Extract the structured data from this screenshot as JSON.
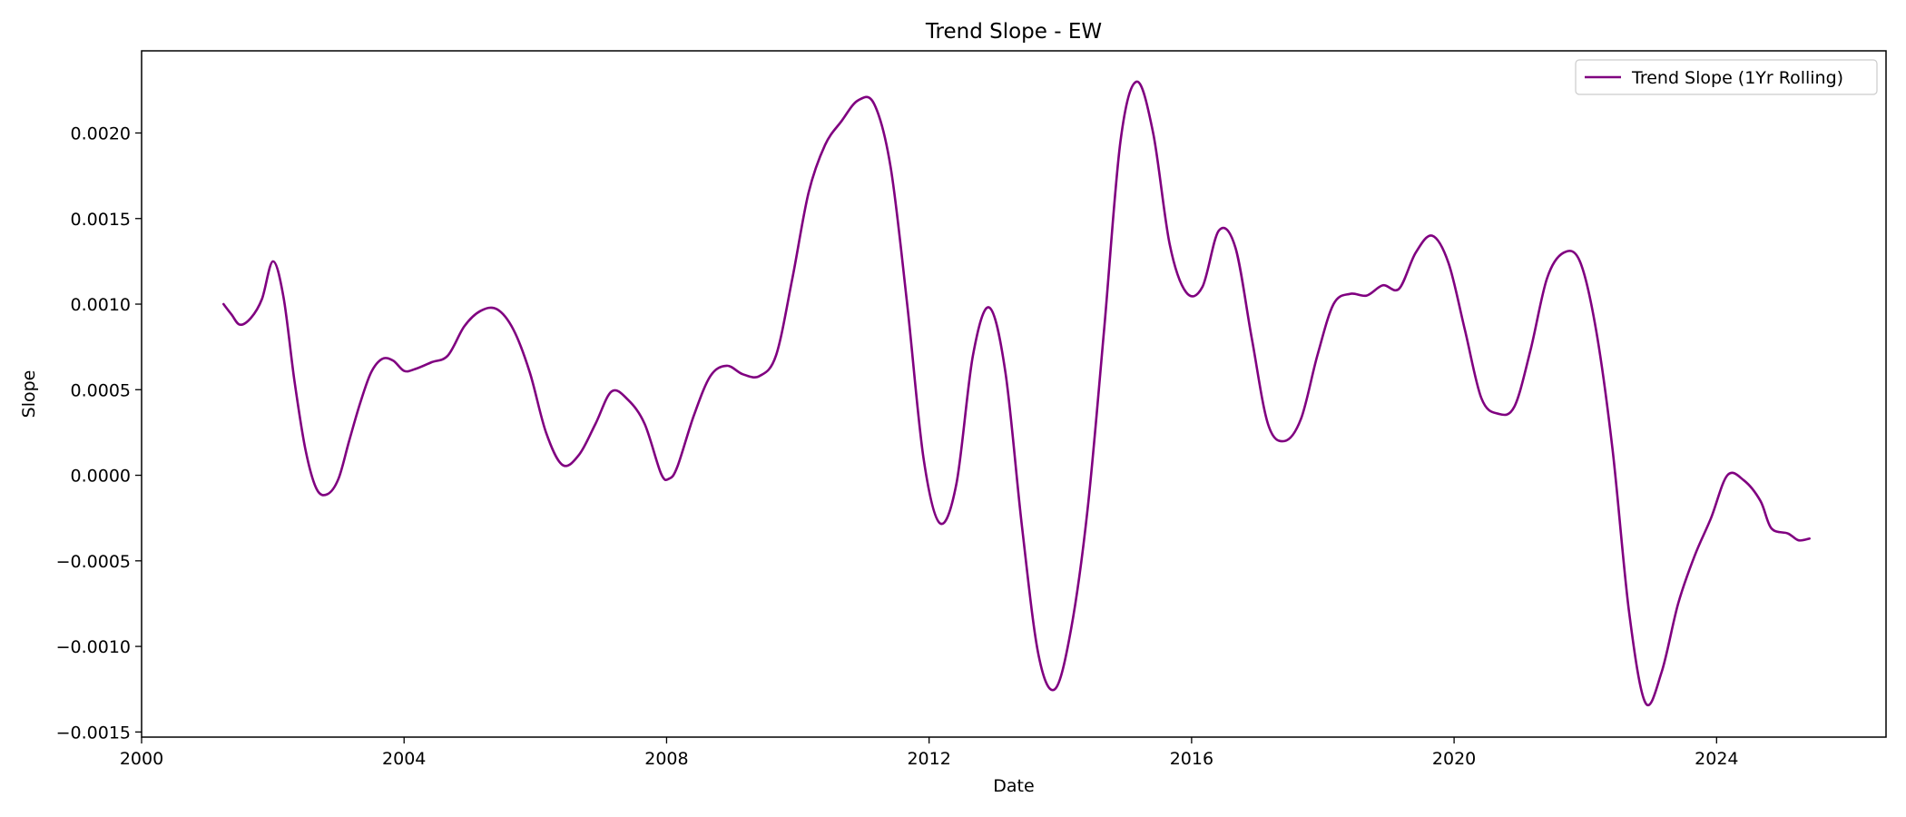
{
  "chart_data": {
    "type": "line",
    "title": "Trend Slope - EW",
    "xlabel": "Date",
    "ylabel": "Slope",
    "x_axis_type": "date",
    "xlim": [
      "2000-01-01",
      "2026-08-01"
    ],
    "ylim": [
      -0.00153,
      0.00248
    ],
    "x_ticks": [
      {
        "date": "2000-01-01",
        "label": "2000"
      },
      {
        "date": "2004-01-01",
        "label": "2004"
      },
      {
        "date": "2008-01-01",
        "label": "2008"
      },
      {
        "date": "2012-01-01",
        "label": "2012"
      },
      {
        "date": "2016-01-01",
        "label": "2016"
      },
      {
        "date": "2020-01-01",
        "label": "2020"
      },
      {
        "date": "2024-01-01",
        "label": "2024"
      }
    ],
    "y_ticks": [
      {
        "value": -0.0015,
        "label": "−0.0015"
      },
      {
        "value": -0.001,
        "label": "−0.0010"
      },
      {
        "value": -0.0005,
        "label": "−0.0005"
      },
      {
        "value": 0.0,
        "label": "0.0000"
      },
      {
        "value": 0.0005,
        "label": "0.0005"
      },
      {
        "value": 0.001,
        "label": "0.0010"
      },
      {
        "value": 0.0015,
        "label": "0.0015"
      },
      {
        "value": 0.002,
        "label": "0.0020"
      }
    ],
    "grid": false,
    "legend_position": "top-right",
    "series": [
      {
        "name": "Trend Slope (1Yr Rolling)",
        "color": "#800080",
        "points": [
          [
            "2001-04-01",
            0.001
          ],
          [
            "2001-05-15",
            0.00094
          ],
          [
            "2001-07-01",
            0.00088
          ],
          [
            "2001-09-01",
            0.00092
          ],
          [
            "2001-11-01",
            0.00103
          ],
          [
            "2002-01-01",
            0.00125
          ],
          [
            "2002-03-01",
            0.00104
          ],
          [
            "2002-05-01",
            0.00055
          ],
          [
            "2002-07-01",
            0.00015
          ],
          [
            "2002-09-01",
            -8e-05
          ],
          [
            "2002-11-01",
            -0.00011
          ],
          [
            "2003-01-01",
            -2e-05
          ],
          [
            "2003-03-01",
            0.0002
          ],
          [
            "2003-05-01",
            0.00042
          ],
          [
            "2003-07-01",
            0.0006
          ],
          [
            "2003-09-01",
            0.00068
          ],
          [
            "2003-11-01",
            0.00067
          ],
          [
            "2004-01-01",
            0.00061
          ],
          [
            "2004-03-01",
            0.00062
          ],
          [
            "2004-06-01",
            0.00066
          ],
          [
            "2004-09-01",
            0.0007
          ],
          [
            "2004-12-01",
            0.00087
          ],
          [
            "2005-03-01",
            0.00096
          ],
          [
            "2005-06-01",
            0.00097
          ],
          [
            "2005-09-01",
            0.00085
          ],
          [
            "2005-12-01",
            0.0006
          ],
          [
            "2006-03-01",
            0.00025
          ],
          [
            "2006-06-01",
            6e-05
          ],
          [
            "2006-09-01",
            0.00012
          ],
          [
            "2006-12-01",
            0.0003
          ],
          [
            "2007-03-01",
            0.00049
          ],
          [
            "2007-06-01",
            0.00044
          ],
          [
            "2007-09-01",
            0.0003
          ],
          [
            "2007-12-01",
            1e-05
          ],
          [
            "2008-01-15",
            -2e-05
          ],
          [
            "2008-03-01",
            5e-05
          ],
          [
            "2008-06-01",
            0.00035
          ],
          [
            "2008-09-01",
            0.00058
          ],
          [
            "2008-12-01",
            0.00064
          ],
          [
            "2009-03-01",
            0.00059
          ],
          [
            "2009-06-01",
            0.00058
          ],
          [
            "2009-09-01",
            0.0007
          ],
          [
            "2009-12-01",
            0.00115
          ],
          [
            "2010-03-01",
            0.00165
          ],
          [
            "2010-06-01",
            0.00193
          ],
          [
            "2010-09-01",
            0.00207
          ],
          [
            "2010-12-01",
            0.00219
          ],
          [
            "2011-03-01",
            0.00217
          ],
          [
            "2011-06-01",
            0.0018
          ],
          [
            "2011-09-01",
            0.001
          ],
          [
            "2011-12-01",
            0.0001
          ],
          [
            "2012-03-01",
            -0.00028
          ],
          [
            "2012-06-01",
            -5e-05
          ],
          [
            "2012-09-01",
            0.0007
          ],
          [
            "2012-12-01",
            0.00098
          ],
          [
            "2013-03-01",
            0.0006
          ],
          [
            "2013-06-01",
            -0.0003
          ],
          [
            "2013-09-01",
            -0.00105
          ],
          [
            "2013-12-01",
            -0.00125
          ],
          [
            "2014-03-01",
            -0.0009
          ],
          [
            "2014-06-01",
            -0.0002
          ],
          [
            "2014-09-01",
            0.00085
          ],
          [
            "2014-12-01",
            0.00195
          ],
          [
            "2015-03-01",
            0.0023
          ],
          [
            "2015-06-01",
            0.002
          ],
          [
            "2015-09-01",
            0.00135
          ],
          [
            "2015-12-01",
            0.00107
          ],
          [
            "2016-03-01",
            0.0011
          ],
          [
            "2016-06-01",
            0.00143
          ],
          [
            "2016-09-01",
            0.00133
          ],
          [
            "2016-12-01",
            0.0008
          ],
          [
            "2017-03-01",
            0.0003
          ],
          [
            "2017-06-01",
            0.0002
          ],
          [
            "2017-09-01",
            0.00033
          ],
          [
            "2017-12-01",
            0.0007
          ],
          [
            "2018-03-01",
            0.001
          ],
          [
            "2018-06-01",
            0.00106
          ],
          [
            "2018-09-01",
            0.00105
          ],
          [
            "2018-12-01",
            0.00111
          ],
          [
            "2019-03-01",
            0.00109
          ],
          [
            "2019-06-01",
            0.0013
          ],
          [
            "2019-09-01",
            0.0014
          ],
          [
            "2019-12-01",
            0.00124
          ],
          [
            "2020-03-01",
            0.00085
          ],
          [
            "2020-06-01",
            0.00045
          ],
          [
            "2020-09-01",
            0.00036
          ],
          [
            "2020-12-01",
            0.0004
          ],
          [
            "2021-03-01",
            0.00073
          ],
          [
            "2021-06-01",
            0.00115
          ],
          [
            "2021-09-01",
            0.0013
          ],
          [
            "2021-12-01",
            0.00125
          ],
          [
            "2022-03-01",
            0.00085
          ],
          [
            "2022-06-01",
            0.00015
          ],
          [
            "2022-09-01",
            -0.0008
          ],
          [
            "2022-12-01",
            -0.00133
          ],
          [
            "2023-03-01",
            -0.00115
          ],
          [
            "2023-06-01",
            -0.00075
          ],
          [
            "2023-09-01",
            -0.00047
          ],
          [
            "2023-12-01",
            -0.00025
          ],
          [
            "2024-03-01",
            0.0
          ],
          [
            "2024-06-01",
            -3e-05
          ],
          [
            "2024-09-01",
            -0.00015
          ],
          [
            "2024-11-01",
            -0.00031
          ],
          [
            "2025-02-01",
            -0.00034
          ],
          [
            "2025-04-01",
            -0.00038
          ],
          [
            "2025-06-01",
            -0.00037
          ]
        ]
      }
    ]
  }
}
